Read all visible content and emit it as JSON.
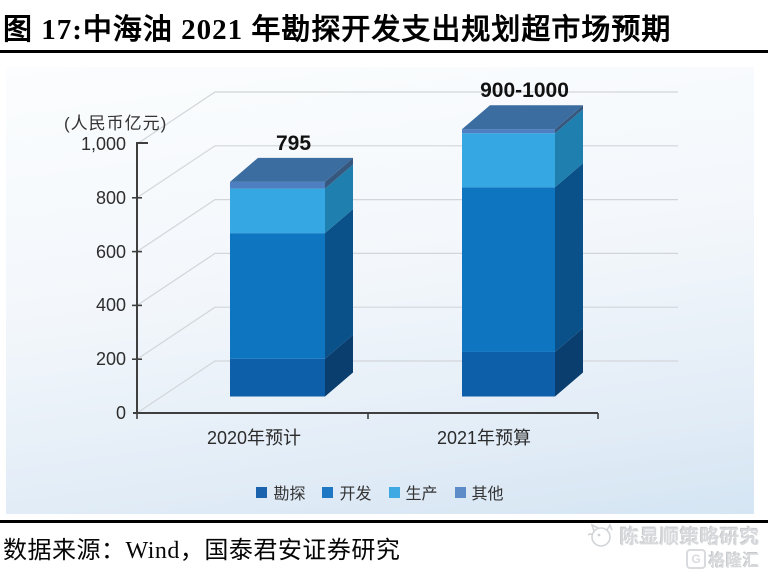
{
  "figure": {
    "title": "图 17:中海油 2021 年勘探开发支出规划超市场预期"
  },
  "source": {
    "label": "数据来源：Wind，国泰君安证券研究"
  },
  "watermark": {
    "research": "陈显顺策略研究",
    "brand_g": "G",
    "brand": "格隆汇"
  },
  "chart_data": {
    "type": "bar",
    "variant": "3d-stacked-column",
    "unit_label": "(人民币亿元)",
    "categories": [
      "2020年预计",
      "2021年预算"
    ],
    "series": [
      {
        "name": "勘探",
        "values": [
          140,
          165
        ],
        "color": "#0e5fa9",
        "side_color": "#093e6f",
        "legend_color": "#1c63ae"
      },
      {
        "name": "开发",
        "values": [
          465,
          610
        ],
        "color": "#0e76c1",
        "side_color": "#0a5189",
        "legend_color": "#1e78c4"
      },
      {
        "name": "生产",
        "values": [
          165,
          200
        ],
        "color": "#35a8e4",
        "side_color": "#1f7fae",
        "legend_color": "#3fa9e4"
      },
      {
        "name": "其他",
        "values": [
          25,
          15
        ],
        "color": "#4d7fc1",
        "side_color": "#36587e",
        "legend_color": "#5e8cc8"
      }
    ],
    "totals": [
      795,
      990
    ],
    "totals_labels": [
      "795",
      "900-1000"
    ],
    "top_face_color": "#3b6da1",
    "yticks": {
      "values": [
        0,
        200,
        400,
        600,
        800,
        1000
      ],
      "labels": [
        "0",
        "200",
        "400",
        "600",
        "800",
        "1,000"
      ]
    },
    "ylim": [
      0,
      1000
    ],
    "grid": true,
    "gridline_color": "#d2d6da",
    "axis_color": "#3f3f3f",
    "legend_position": "bottom"
  }
}
